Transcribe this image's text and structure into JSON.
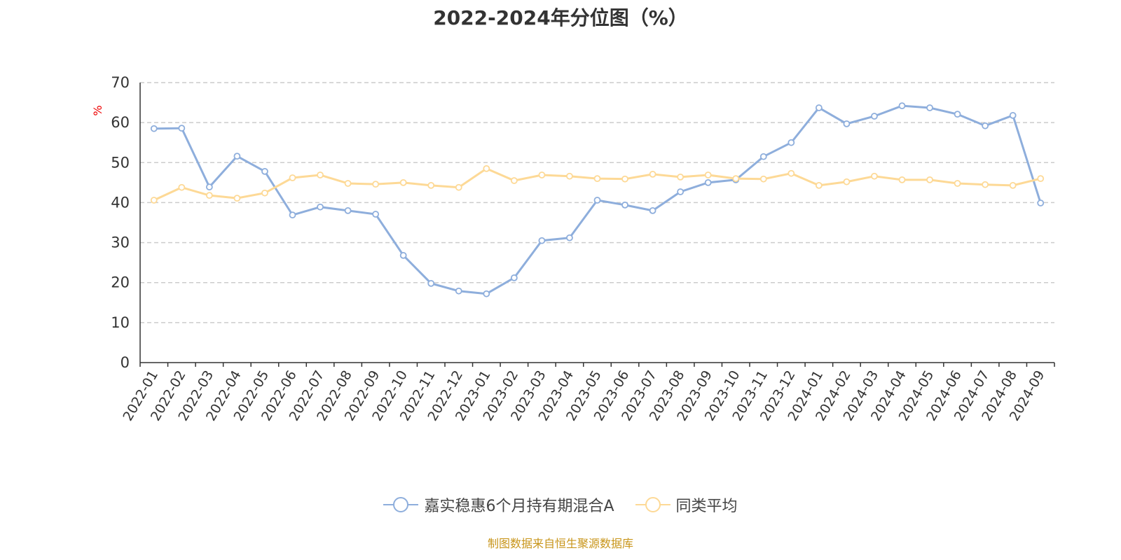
{
  "chart_data": {
    "type": "line",
    "title": "2022-2024年分位图（%）",
    "ylabel": "%",
    "ylim": [
      0,
      70
    ],
    "yticks": [
      0,
      10,
      20,
      30,
      40,
      50,
      60,
      70
    ],
    "grid": true,
    "legend_position": "bottom",
    "categories": [
      "2022-01",
      "2022-02",
      "2022-03",
      "2022-04",
      "2022-05",
      "2022-06",
      "2022-07",
      "2022-08",
      "2022-09",
      "2022-10",
      "2022-11",
      "2022-12",
      "2023-01",
      "2023-02",
      "2023-03",
      "2023-04",
      "2023-05",
      "2023-06",
      "2023-07",
      "2023-08",
      "2023-09",
      "2023-10",
      "2023-11",
      "2023-12",
      "2024-01",
      "2024-02",
      "2024-03",
      "2024-04",
      "2024-05",
      "2024-06",
      "2024-07",
      "2024-08",
      "2024-09"
    ],
    "series": [
      {
        "name": "嘉实稳惠6个月持有期混合A",
        "color": "#8eaedc",
        "values": [
          58.5,
          58.6,
          43.9,
          51.6,
          47.8,
          36.9,
          38.9,
          38.0,
          37.1,
          26.8,
          19.8,
          17.9,
          17.2,
          21.2,
          30.5,
          31.2,
          40.6,
          39.4,
          38.0,
          42.7,
          45.0,
          45.7,
          51.5,
          55.0,
          63.7,
          59.7,
          61.6,
          64.2,
          63.7,
          62.1,
          59.2,
          61.8,
          39.9
        ]
      },
      {
        "name": "同类平均",
        "color": "#fdd996",
        "values": [
          40.6,
          43.8,
          41.8,
          41.1,
          42.4,
          46.2,
          46.9,
          44.8,
          44.6,
          45.0,
          44.3,
          43.8,
          48.5,
          45.5,
          46.9,
          46.6,
          46.0,
          45.9,
          47.1,
          46.4,
          46.9,
          46.0,
          45.9,
          47.3,
          44.3,
          45.2,
          46.6,
          45.7,
          45.7,
          44.8,
          44.5,
          44.3,
          46.0
        ]
      }
    ]
  },
  "source": "制图数据来自恒生聚源数据库"
}
